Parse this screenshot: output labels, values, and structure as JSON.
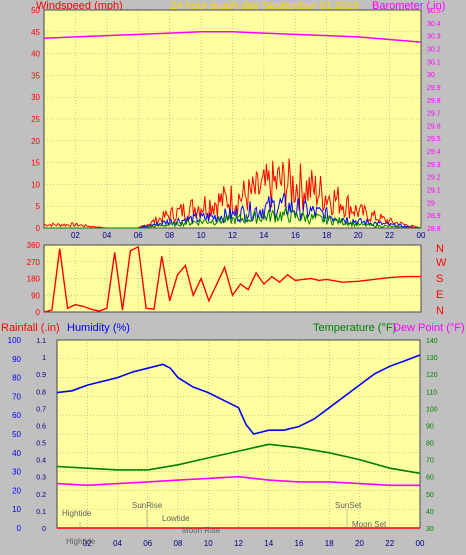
{
  "header": {
    "left_label": "Windspeed (mph)",
    "center_label": "24 hour graph day   September 01 2019",
    "right_label": "Barometer (.in)"
  },
  "colors": {
    "background": "#c0c0c0",
    "plot_bg": "#ffffa0",
    "wind": "#ff0000",
    "gust": "#0000ff",
    "avg": "#008000",
    "baro": "#ff00ff",
    "title": "#ffd700",
    "grid": "#808080"
  },
  "compass": [
    "N",
    "W",
    "S",
    "E",
    "N"
  ],
  "panel3_header": {
    "rainfall": "Rainfall (.in)",
    "humidity": "Humidity (%)",
    "temperature": "Temperature (°F)",
    "dewpoint": "Dew Point (°F)"
  },
  "astro_labels": [
    "Hightide",
    "SunRise",
    "Lowtide",
    "Moon Rise",
    "SunSet",
    "Moon Set",
    "Hightide"
  ],
  "x_ticks": [
    "02",
    "04",
    "06",
    "08",
    "10",
    "12",
    "14",
    "16",
    "18",
    "20",
    "22",
    "00"
  ],
  "chart_data": [
    {
      "type": "line",
      "name": "wind_barometer",
      "x_range_hours": [
        0,
        24
      ],
      "y_left": {
        "label": "Windspeed (mph)",
        "range": [
          0,
          50
        ],
        "ticks": [
          0,
          5,
          10,
          15,
          20,
          25,
          30,
          35,
          40,
          45,
          50
        ]
      },
      "y_right": {
        "label": "Barometer (.in)",
        "range": [
          28.8,
          30.5
        ],
        "ticks": [
          28.8,
          28.9,
          29.0,
          29.1,
          29.2,
          29.3,
          29.4,
          29.5,
          29.6,
          29.7,
          29.8,
          29.9,
          30.0,
          30.1,
          30.2,
          30.3,
          30.4,
          30.5
        ]
      },
      "series": [
        {
          "name": "Barometer",
          "axis": "right",
          "x": [
            0,
            2,
            4,
            6,
            8,
            10,
            12,
            14,
            16,
            18,
            20,
            22,
            24
          ],
          "values": [
            30.28,
            30.29,
            30.3,
            30.31,
            30.32,
            30.33,
            30.33,
            30.32,
            30.31,
            30.3,
            30.29,
            30.27,
            30.25
          ]
        },
        {
          "name": "Wind gust",
          "axis": "left",
          "x": [
            0,
            2,
            4,
            6,
            7,
            8,
            10,
            12,
            13,
            14,
            15,
            16,
            17,
            18,
            19,
            20,
            22,
            24
          ],
          "values": [
            1,
            1,
            0,
            0,
            2,
            4,
            7,
            9,
            10,
            12,
            14,
            13,
            12,
            10,
            8,
            5,
            2,
            0
          ]
        },
        {
          "name": "Wind speed",
          "axis": "left",
          "x": [
            0,
            2,
            4,
            6,
            7,
            8,
            10,
            12,
            13,
            14,
            15,
            16,
            17,
            18,
            19,
            20,
            22,
            24
          ],
          "values": [
            0,
            0,
            0,
            0,
            1,
            2,
            3,
            4,
            5,
            6,
            7,
            6,
            5,
            4,
            3,
            2,
            1,
            0
          ]
        },
        {
          "name": "Wind average",
          "axis": "left",
          "x": [
            0,
            2,
            4,
            6,
            7,
            8,
            10,
            12,
            13,
            14,
            15,
            16,
            17,
            18,
            19,
            20,
            22,
            24
          ],
          "values": [
            0,
            0,
            0,
            0,
            0.5,
            1,
            2,
            2.5,
            3,
            3.5,
            4,
            3.5,
            3,
            2.5,
            2,
            1,
            0.5,
            0
          ]
        }
      ]
    },
    {
      "type": "line",
      "name": "wind_direction",
      "x_range_hours": [
        0,
        24
      ],
      "y_left": {
        "range": [
          0,
          360
        ],
        "ticks": [
          0,
          90,
          180,
          270,
          360
        ]
      },
      "series": [
        {
          "name": "Wind direction",
          "x": [
            0,
            0.5,
            1,
            1.5,
            2,
            2.5,
            3,
            3.5,
            4,
            4.5,
            5,
            5.5,
            6,
            6.5,
            7,
            7.5,
            8,
            8.5,
            9,
            9.5,
            10,
            10.5,
            11,
            11.5,
            12,
            12.5,
            13,
            13.5,
            14,
            14.5,
            15,
            15.5,
            16,
            16.5,
            17,
            17.5,
            18,
            19,
            20,
            21,
            22,
            23,
            24
          ],
          "values": [
            0,
            10,
            340,
            20,
            40,
            30,
            15,
            5,
            20,
            320,
            10,
            330,
            350,
            20,
            15,
            300,
            60,
            200,
            250,
            90,
            180,
            60,
            150,
            240,
            90,
            150,
            120,
            210,
            150,
            190,
            160,
            200,
            170,
            175,
            180,
            170,
            175,
            160,
            165,
            175,
            185,
            190,
            190
          ]
        }
      ]
    },
    {
      "type": "line",
      "name": "rain_humidity_temperature",
      "x_range_hours": [
        0,
        24
      ],
      "y_left_outer": {
        "label": "Humidity (%)",
        "range": [
          0,
          100
        ],
        "ticks": [
          0,
          10,
          20,
          30,
          40,
          50,
          60,
          70,
          80,
          90,
          100
        ]
      },
      "y_left_inner": {
        "label": "Rainfall (.in)",
        "range": [
          0,
          1.1
        ],
        "ticks": [
          0,
          0.1,
          0.2,
          0.3,
          0.4,
          0.5,
          0.6,
          0.7,
          0.8,
          0.9,
          1,
          1.1
        ]
      },
      "y_right": {
        "label": "Temperature (°F)",
        "range": [
          30,
          140
        ],
        "ticks": [
          30,
          40,
          50,
          60,
          70,
          80,
          90,
          100,
          110,
          120,
          130,
          140
        ]
      },
      "series": [
        {
          "name": "Humidity",
          "axis": "left_outer",
          "x": [
            0,
            1,
            2,
            3,
            4,
            5,
            6,
            7,
            7.5,
            8,
            9,
            10,
            11,
            12,
            12.5,
            13,
            13.5,
            14,
            15,
            16,
            17,
            18,
            19,
            20,
            21,
            22,
            23,
            24
          ],
          "values": [
            72,
            73,
            76,
            78,
            80,
            83,
            85,
            87,
            85,
            80,
            75,
            72,
            68,
            64,
            55,
            50,
            51,
            52,
            52,
            54,
            58,
            64,
            70,
            76,
            82,
            86,
            89,
            92
          ]
        },
        {
          "name": "Temperature",
          "axis": "right",
          "x": [
            0,
            2,
            4,
            6,
            8,
            10,
            12,
            14,
            16,
            18,
            20,
            22,
            24
          ],
          "values": [
            66,
            65,
            64,
            64,
            67,
            71,
            75,
            79,
            77,
            74,
            70,
            65,
            62
          ]
        },
        {
          "name": "Dew Point",
          "axis": "right",
          "x": [
            0,
            2,
            4,
            6,
            8,
            10,
            12,
            14,
            16,
            18,
            20,
            22,
            24
          ],
          "values": [
            56,
            55,
            56,
            57,
            58,
            59,
            60,
            58,
            57,
            57,
            56,
            55,
            55
          ]
        },
        {
          "name": "Rainfall",
          "axis": "left_inner",
          "x": [
            0,
            24
          ],
          "values": [
            0,
            0
          ]
        }
      ]
    }
  ]
}
